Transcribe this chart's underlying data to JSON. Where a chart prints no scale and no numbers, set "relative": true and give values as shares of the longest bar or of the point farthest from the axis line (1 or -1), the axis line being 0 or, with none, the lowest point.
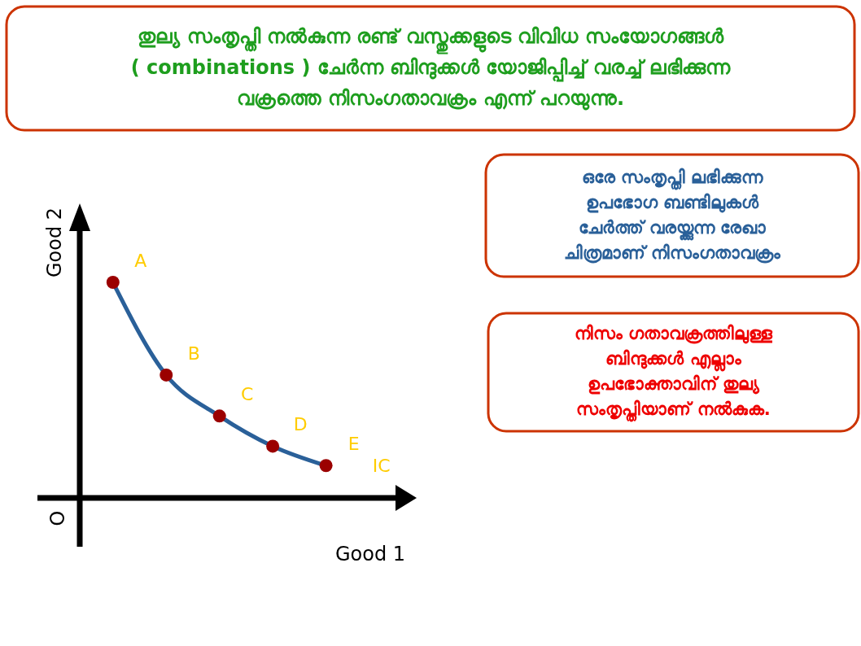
{
  "chart_data": {
    "type": "line",
    "relative": true,
    "xlabel": "Good 1",
    "ylabel": "Good 2",
    "categories": [
      null,
      null,
      null,
      null,
      null
    ],
    "series": [
      {
        "color": "#2a6099",
        "colors": [
          "#9b0000",
          "#9b0000",
          "#9b0000",
          "#9b0000",
          "#9b0000"
        ],
        "marker": "circle",
        "values": [
          1,
          0.57,
          0.38,
          0.24,
          0.15
        ]
      }
    ],
    "annotations": [
      "തുല്യ സംതൃപ്തി നൽകുന്ന രണ്ട് വസ്തുക്കളുടെ വിവിധ സംയോഗങ്ങൾ\n( combinations ) ചേർന്ന ബിന്ദുക്കൾ യോജിപ്പിച്ച് വരച്ച് ലഭിക്കുന്ന\nവക്രത്തെ നിസംഗതാവക്രം എന്ന് പറയുന്നു.",
      "ഒരേ സംതൃപ്തി ലഭിക്കുന്ന\nഉപഭോഗ ബണ്ടിലുകൾ\nചേർത്ത് വരയ്ക്കുന്ന രേഖാ\nചിത്രമാണ് നിസംഗതാവക്രം",
      "നിസം ഗതാവക്രത്തിലുള്ള\nബിന്ദുക്കൾ എല്ലാം\nഉപഭോക്താവിന് തുല്യ\nസംതൃപ്തിയാണ് നൽകുക.",
      "O",
      "A",
      "B",
      "C",
      "D",
      "E",
      "IC"
    ]
  }
}
